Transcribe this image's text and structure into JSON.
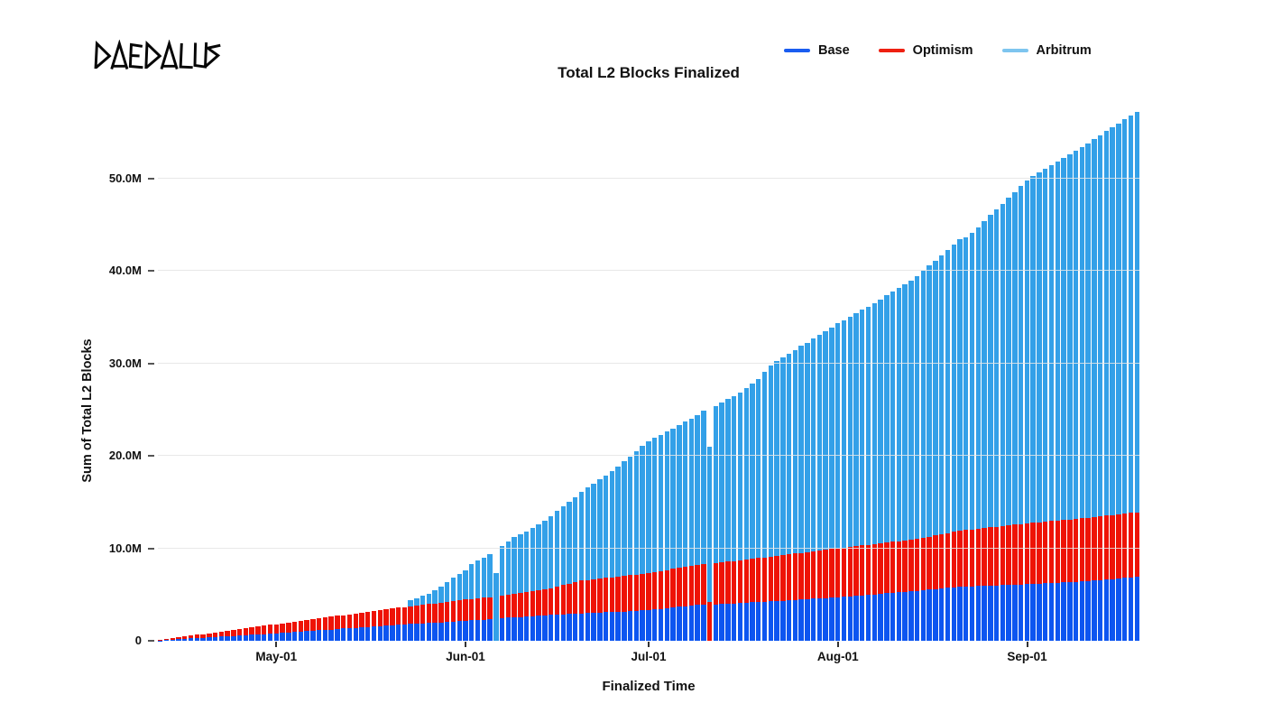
{
  "brand": {
    "name": "DAEDALUS"
  },
  "header": {
    "title": "Total L2 Blocks Finalized"
  },
  "legend": {
    "items": [
      {
        "label": "Base",
        "swatch_color": "#1a5df0"
      },
      {
        "label": "Optimism",
        "swatch_color": "#ee2011"
      },
      {
        "label": "Arbitrum",
        "swatch_color": "#7ec5ef"
      }
    ]
  },
  "axes": {
    "ylabel": "Sum of Total L2 Blocks",
    "xlabel": "Finalized Time"
  },
  "chart_data": {
    "type": "bar",
    "stacked": true,
    "title": "Total L2 Blocks Finalized",
    "xlabel": "Finalized Time",
    "ylabel": "Sum of Total L2 Blocks",
    "values_unit": "millions of blocks",
    "ylim": [
      0,
      57.5
    ],
    "grid": true,
    "legend_position": "top-right",
    "num_bars": 161,
    "yticks": [
      {
        "label": "0",
        "value": 0
      },
      {
        "label": "10.0M",
        "value": 10
      },
      {
        "label": "20.0M",
        "value": 20
      },
      {
        "label": "30.0M",
        "value": 30
      },
      {
        "label": "40.0M",
        "value": 40
      },
      {
        "label": "50.0M",
        "value": 50
      }
    ],
    "xticks": [
      {
        "label": "May-01",
        "index": 19
      },
      {
        "label": "Jun-01",
        "index": 50
      },
      {
        "label": "Jul-01",
        "index": 80
      },
      {
        "label": "Aug-01",
        "index": 111
      },
      {
        "label": "Sep-01",
        "index": 142
      }
    ],
    "series": [
      {
        "name": "Base",
        "color": "#0d55f0",
        "values": [
          0.05,
          0.09,
          0.13,
          0.17,
          0.21,
          0.25,
          0.29,
          0.33,
          0.37,
          0.41,
          0.45,
          0.49,
          0.52,
          0.56,
          0.6,
          0.64,
          0.68,
          0.72,
          0.76,
          0.8,
          0.85,
          0.89,
          0.94,
          0.99,
          1.04,
          1.08,
          1.13,
          1.18,
          1.22,
          1.27,
          1.32,
          1.37,
          1.41,
          1.46,
          1.51,
          1.56,
          1.6,
          1.65,
          1.7,
          1.74,
          1.78,
          1.81,
          1.85,
          1.89,
          1.93,
          1.96,
          2,
          2.04,
          2.08,
          2.11,
          2.15,
          2.2,
          2.24,
          2.28,
          2.32,
          0,
          2.45,
          2.49,
          2.54,
          2.58,
          2.62,
          2.67,
          2.71,
          2.76,
          2.8,
          2.83,
          2.86,
          2.89,
          2.93,
          2.96,
          2.99,
          3.02,
          3.05,
          3.08,
          3.11,
          3.14,
          3.17,
          3.2,
          3.23,
          3.27,
          3.3,
          3.38,
          3.45,
          3.53,
          3.6,
          3.68,
          3.75,
          3.83,
          3.86,
          3.9,
          0,
          3.95,
          3.98,
          4.02,
          4.05,
          4.08,
          4.12,
          4.15,
          4.18,
          4.22,
          4.25,
          4.29,
          4.33,
          4.37,
          4.41,
          4.45,
          4.5,
          4.54,
          4.58,
          4.62,
          4.66,
          4.7,
          4.75,
          4.81,
          4.86,
          4.92,
          4.97,
          5.02,
          5.08,
          5.13,
          5.18,
          5.24,
          5.29,
          5.35,
          5.4,
          5.46,
          5.53,
          5.59,
          5.66,
          5.72,
          5.79,
          5.85,
          5.87,
          5.9,
          5.92,
          5.94,
          5.96,
          5.99,
          6.01,
          6.03,
          6.06,
          6.08,
          6.1,
          6.14,
          6.17,
          6.21,
          6.24,
          6.28,
          6.31,
          6.35,
          6.38,
          6.42,
          6.45,
          6.51,
          6.56,
          6.62,
          6.67,
          6.73,
          6.79,
          6.84,
          6.9
        ]
      },
      {
        "name": "Optimism",
        "color": "#ee1306",
        "values": [
          0.05,
          0.1,
          0.15,
          0.2,
          0.25,
          0.3,
          0.35,
          0.4,
          0.45,
          0.5,
          0.54,
          0.59,
          0.65,
          0.7,
          0.75,
          0.8,
          0.85,
          0.9,
          0.95,
          1,
          1.04,
          1.09,
          1.13,
          1.17,
          1.21,
          1.26,
          1.3,
          1.34,
          1.39,
          1.43,
          1.46,
          1.5,
          1.55,
          1.59,
          1.63,
          1.67,
          1.72,
          1.76,
          1.8,
          1.84,
          1.88,
          1.93,
          1.97,
          2.01,
          2.04,
          2.09,
          2.13,
          2.17,
          2.21,
          2.26,
          2.3,
          2.32,
          2.35,
          2.38,
          2.41,
          0,
          2.4,
          2.47,
          2.52,
          2.59,
          2.65,
          2.71,
          2.78,
          2.83,
          2.9,
          3.03,
          3.16,
          3.29,
          3.41,
          3.54,
          3.58,
          3.63,
          3.67,
          3.71,
          3.75,
          3.8,
          3.84,
          3.88,
          3.92,
          3.96,
          4,
          4.05,
          4.1,
          4.13,
          4.17,
          4.21,
          4.26,
          4.3,
          4.33,
          4.35,
          4.2,
          4.45,
          4.5,
          4.54,
          4.58,
          4.63,
          4.67,
          4.72,
          4.76,
          4.8,
          4.85,
          4.89,
          4.93,
          4.98,
          5.02,
          5.06,
          5.09,
          5.13,
          5.17,
          5.22,
          5.26,
          5.3,
          5.33,
          5.34,
          5.37,
          5.39,
          5.41,
          5.44,
          5.46,
          5.49,
          5.51,
          5.53,
          5.56,
          5.57,
          5.6,
          5.67,
          5.73,
          5.8,
          5.85,
          5.92,
          5.98,
          6.05,
          6.1,
          6.15,
          6.2,
          6.25,
          6.3,
          6.35,
          6.4,
          6.45,
          6.49,
          6.55,
          6.6,
          6.62,
          6.65,
          6.67,
          6.7,
          6.72,
          6.75,
          6.77,
          6.8,
          6.82,
          6.85,
          6.87,
          6.89,
          6.91,
          6.93,
          6.95,
          6.96,
          6.99,
          7
        ]
      },
      {
        "name": "Arbitrum",
        "color": "#33a0e8",
        "values": [
          0,
          0,
          0,
          0,
          0,
          0,
          0,
          0,
          0,
          0,
          0,
          0,
          0,
          0,
          0,
          0,
          0,
          0,
          0,
          0,
          0,
          0,
          0,
          0,
          0,
          0,
          0,
          0,
          0,
          0,
          0,
          0,
          0,
          0,
          0,
          0,
          0,
          0,
          0,
          0,
          0,
          0.65,
          0.8,
          1,
          1.15,
          1.45,
          1.75,
          2.1,
          2.5,
          2.85,
          3.15,
          3.8,
          4.1,
          4.35,
          4.65,
          7.3,
          5.35,
          5.75,
          6.15,
          6.35,
          6.55,
          6.8,
          7.1,
          7.4,
          7.8,
          8.15,
          8.5,
          8.8,
          9.2,
          9.6,
          10,
          10.35,
          10.75,
          11.1,
          11.45,
          11.9,
          12.4,
          12.85,
          13.35,
          13.8,
          14.3,
          14.5,
          14.7,
          14.95,
          15.15,
          15.4,
          15.7,
          15.85,
          16.2,
          16.65,
          16.8,
          17,
          17.25,
          17.55,
          17.8,
          18.1,
          18.5,
          18.95,
          19.35,
          20.05,
          20.7,
          21.05,
          21.35,
          21.7,
          22,
          22.35,
          22.65,
          23,
          23.3,
          23.65,
          23.95,
          24.3,
          24.6,
          24.9,
          25.15,
          25.45,
          25.75,
          26.05,
          26.35,
          26.7,
          27.05,
          27.4,
          27.7,
          28.05,
          28.4,
          28.85,
          29.3,
          29.7,
          30.15,
          30.6,
          31.05,
          31.5,
          31.6,
          32.05,
          32.6,
          33.2,
          33.75,
          34.3,
          34.85,
          35.4,
          35.95,
          36.5,
          37.1,
          37.45,
          37.8,
          38.1,
          38.45,
          38.8,
          39.15,
          39.5,
          39.8,
          40.15,
          40.5,
          40.85,
          41.2,
          41.55,
          41.9,
          42.25,
          42.6,
          42.95,
          43.3
        ]
      }
    ]
  }
}
